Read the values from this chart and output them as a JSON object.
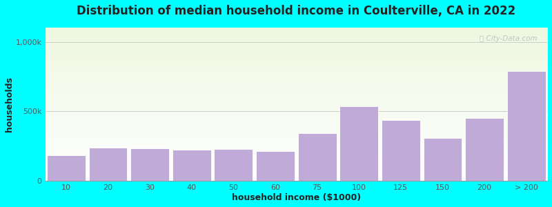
{
  "title": "Distribution of median household income in Coulterville, CA in 2022",
  "xlabel": "household income ($1000)",
  "ylabel": "households",
  "background_color": "#00FFFF",
  "plot_bg_top": "#eef8e0",
  "plot_bg_bottom": "#ffffff",
  "bar_color": "#c0aad8",
  "bar_edge_color": "#ffffff",
  "categories": [
    "10",
    "20",
    "30",
    "40",
    "50",
    "60",
    "75",
    "100",
    "125",
    "150",
    "200",
    "> 200"
  ],
  "values": [
    185000,
    240000,
    235000,
    225000,
    230000,
    215000,
    345000,
    535000,
    440000,
    310000,
    455000,
    790000
  ],
  "yticks": [
    0,
    500000,
    1000000
  ],
  "ytick_labels": [
    "0",
    "500k",
    "1,000k"
  ],
  "ylim": [
    0,
    1100000
  ],
  "watermark": "ⓘ City-Data.com",
  "title_fontsize": 12,
  "subtitle_fontsize": 10,
  "axis_label_fontsize": 9,
  "tick_fontsize": 8,
  "title_color": "#222222",
  "subtitle_color": "#667777",
  "axis_color": "#555555"
}
